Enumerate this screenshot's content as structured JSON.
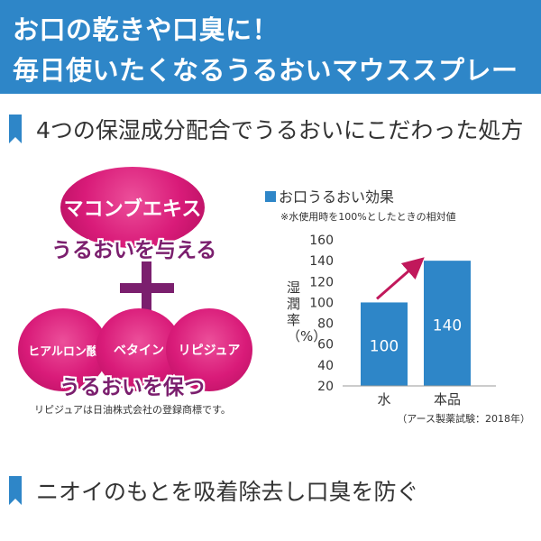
{
  "header": {
    "line1": "お口の乾きや口臭に！",
    "line2": "毎日使いたくなるうるおいマウススプレー"
  },
  "section1": {
    "title": "4つの保湿成分配合でうるおいにこだわった処方"
  },
  "ingredients": {
    "top": "マコンブエキス",
    "top_tagline": "うるおいを与える",
    "bottom": [
      "ヒアルロン酸",
      "ベタイン",
      "リピジュア"
    ],
    "bottom_tagline": "うるおいを保つ",
    "trademark_note": "リピジュアは日油株式会社の登録商標です。"
  },
  "chart_block": {
    "title": "お口うるおい効果",
    "subtitle": "※水使用時を100%としたときの相対値",
    "source": "（アース製薬試験：2018年）"
  },
  "chart_data": {
    "type": "bar",
    "title": "お口うるおい効果",
    "categories": [
      "水",
      "本品"
    ],
    "values": [
      100,
      140
    ],
    "data_labels": [
      "100",
      "140"
    ],
    "ylabel": "湿潤率（%）",
    "ylim": [
      20,
      160
    ],
    "yticks": [
      20,
      40,
      60,
      80,
      100,
      120,
      140,
      160
    ],
    "grid": false,
    "annotation": "arrow from 水 bar to 本品 bar indicating increase",
    "bar_color": "#2e86c8",
    "arrow_color": "#c1185b"
  },
  "section2": {
    "title": "ニオイのもとを吸着除去し口臭を防ぐ"
  },
  "colors": {
    "accent": "#2e86c8",
    "magenta": "#d91b79",
    "purple": "#7b1f6e"
  }
}
